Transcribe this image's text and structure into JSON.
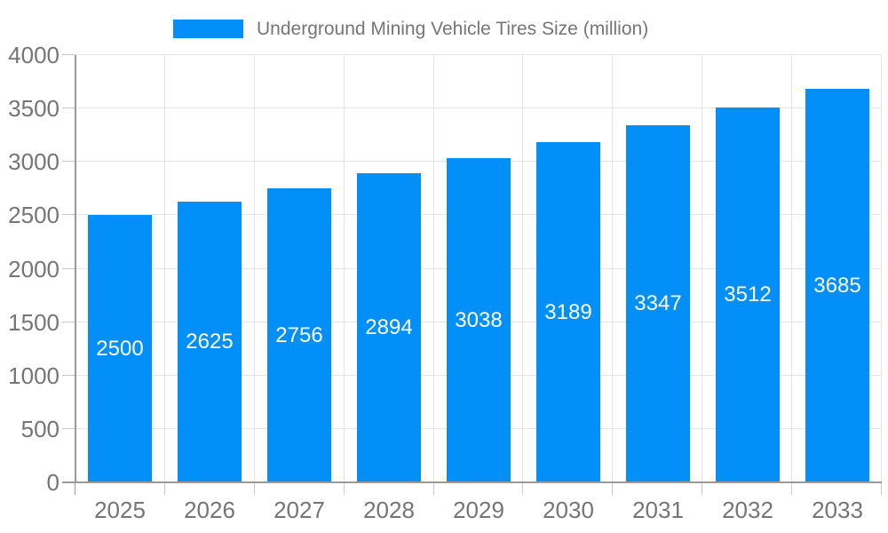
{
  "chart_data": {
    "type": "bar",
    "title": "Underground Mining Vehicle Tires Size (million)",
    "series_name": "Underground Mining Vehicle Tires Size (million)",
    "categories": [
      "2025",
      "2026",
      "2027",
      "2028",
      "2029",
      "2030",
      "2031",
      "2032",
      "2033"
    ],
    "values": [
      2500,
      2625,
      2756,
      2894,
      3038,
      3189,
      3347,
      3512,
      3685
    ],
    "value_labels": [
      "2500",
      "2625",
      "2756",
      "2894",
      "3038",
      "3189",
      "3347",
      "3512",
      "3685"
    ],
    "value_label_position": "inside-center",
    "xlabel": "",
    "ylabel": "",
    "ylim": [
      0,
      4000
    ],
    "ytick_step": 500,
    "ytick_labels": [
      "0",
      "500",
      "1000",
      "1500",
      "2000",
      "2500",
      "3000",
      "3500",
      "4000"
    ],
    "grid": true,
    "legend_position": "top",
    "bar_color": "#0290F8",
    "value_label_color": "#ffffff",
    "gridline_color": "#e4e4e4",
    "axis_line_color": "#9a9a9a",
    "tick_color": "#c9c9c9",
    "text_color": "#757575"
  }
}
